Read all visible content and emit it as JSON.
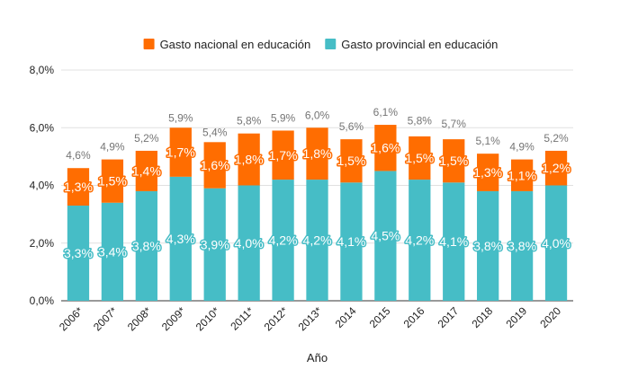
{
  "chart_data": {
    "type": "bar",
    "stacked": true,
    "categories": [
      "2006*",
      "2007*",
      "2008*",
      "2009*",
      "2010*",
      "2011*",
      "2012*",
      "2013*",
      "2014",
      "2015",
      "2016",
      "2017",
      "2018",
      "2019",
      "2020"
    ],
    "series": [
      {
        "name": "Gasto provincial en educación",
        "color": "#46bdc6",
        "values": [
          3.3,
          3.4,
          3.8,
          4.3,
          3.9,
          4.0,
          4.2,
          4.2,
          4.1,
          4.5,
          4.2,
          4.1,
          3.8,
          3.8,
          4.0
        ],
        "labels": [
          "3,3%",
          "3,4%",
          "3,8%",
          "4,3%",
          "3,9%",
          "4,0%",
          "4,2%",
          "4,2%",
          "4,1%",
          "4,5%",
          "4,2%",
          "4,1%",
          "3,8%",
          "3,8%",
          "4,0%"
        ]
      },
      {
        "name": "Gasto nacional en educación",
        "color": "#ff6d01",
        "values": [
          1.3,
          1.5,
          1.4,
          1.7,
          1.6,
          1.8,
          1.7,
          1.8,
          1.5,
          1.6,
          1.5,
          1.5,
          1.3,
          1.1,
          1.2
        ],
        "labels": [
          "1,3%",
          "1,5%",
          "1,4%",
          "1,7%",
          "1,6%",
          "1,8%",
          "1,7%",
          "1,8%",
          "1,5%",
          "1,6%",
          "1,5%",
          "1,5%",
          "1,3%",
          "1,1%",
          "1,2%"
        ]
      }
    ],
    "totals": [
      4.6,
      4.9,
      5.2,
      5.9,
      5.4,
      5.8,
      5.9,
      6.0,
      5.6,
      6.1,
      5.8,
      5.7,
      5.1,
      4.9,
      5.2
    ],
    "total_labels": [
      "4,6%",
      "4,9%",
      "5,2%",
      "5,9%",
      "5,4%",
      "5,8%",
      "5,9%",
      "6,0%",
      "5,6%",
      "6,1%",
      "5,8%",
      "5,7%",
      "5,1%",
      "4,9%",
      "5,2%"
    ],
    "xlabel": "Año",
    "ylabel": "",
    "ylim": [
      0,
      8
    ],
    "yticks": [
      0,
      2,
      4,
      6,
      8
    ],
    "ytick_labels": [
      "0,0%",
      "2,0%",
      "4,0%",
      "6,0%",
      "8,0%"
    ],
    "grid": true,
    "legend_position": "top",
    "legend_order": [
      "Gasto nacional en educación",
      "Gasto provincial en educación"
    ]
  }
}
